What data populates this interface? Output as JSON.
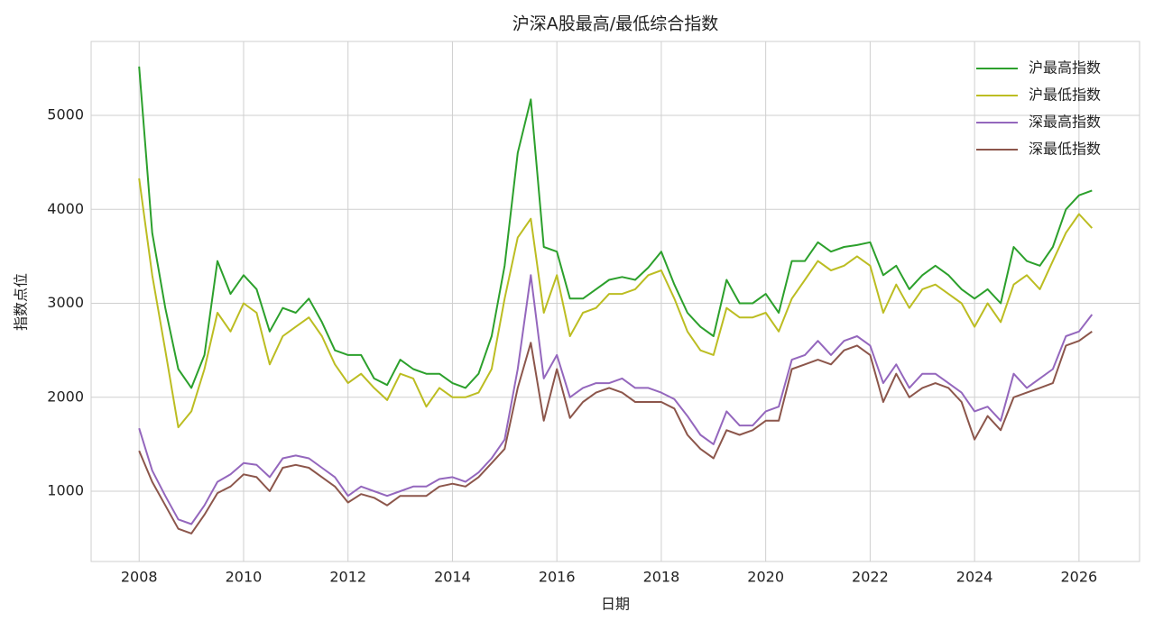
{
  "chart_data": {
    "type": "line",
    "title": "沪深A股最高/最低综合指数",
    "xlabel": "日期",
    "ylabel": "指数点位",
    "x": [
      2008,
      2008.25,
      2008.5,
      2008.75,
      2009,
      2009.25,
      2009.5,
      2009.75,
      2010,
      2010.25,
      2010.5,
      2010.75,
      2011,
      2011.25,
      2011.5,
      2011.75,
      2012,
      2012.25,
      2012.5,
      2012.75,
      2013,
      2013.25,
      2013.5,
      2013.75,
      2014,
      2014.25,
      2014.5,
      2014.75,
      2015,
      2015.25,
      2015.5,
      2015.75,
      2016,
      2016.25,
      2016.5,
      2016.75,
      2017,
      2017.25,
      2017.5,
      2017.75,
      2018,
      2018.25,
      2018.5,
      2018.75,
      2019,
      2019.25,
      2019.5,
      2019.75,
      2020,
      2020.25,
      2020.5,
      2020.75,
      2021,
      2021.25,
      2021.5,
      2021.75,
      2022,
      2022.25,
      2022.5,
      2022.75,
      2023,
      2023.25,
      2023.5,
      2023.75,
      2024,
      2024.25,
      2024.5,
      2024.75,
      2025,
      2025.25,
      2025.5,
      2025.75,
      2026,
      2026.25
    ],
    "series": [
      {
        "name": "沪最高指数",
        "color": "#2ca02c",
        "values": [
          5520,
          3750,
          2950,
          2300,
          2100,
          2450,
          3450,
          3100,
          3300,
          3150,
          2700,
          2950,
          2900,
          3050,
          2800,
          2500,
          2450,
          2450,
          2200,
          2130,
          2400,
          2300,
          2250,
          2250,
          2150,
          2100,
          2250,
          2650,
          3400,
          4600,
          5170,
          3600,
          3550,
          3050,
          3050,
          3150,
          3250,
          3280,
          3250,
          3380,
          3550,
          3200,
          2900,
          2750,
          2650,
          3250,
          3000,
          3000,
          3100,
          2900,
          3450,
          3450,
          3650,
          3550,
          3600,
          3620,
          3650,
          3300,
          3400,
          3150,
          3300,
          3400,
          3300,
          3150,
          3050,
          3150,
          3000,
          3600,
          3450,
          3400,
          3600,
          4000,
          4150,
          4200
        ]
      },
      {
        "name": "沪最低指数",
        "color": "#bcbd22",
        "values": [
          4330,
          3300,
          2500,
          1680,
          1850,
          2300,
          2900,
          2700,
          3000,
          2900,
          2350,
          2650,
          2750,
          2850,
          2650,
          2350,
          2150,
          2250,
          2100,
          1970,
          2250,
          2200,
          1900,
          2100,
          2000,
          2000,
          2050,
          2300,
          3050,
          3700,
          3900,
          2900,
          3300,
          2650,
          2900,
          2950,
          3100,
          3100,
          3150,
          3300,
          3350,
          3050,
          2700,
          2500,
          2450,
          2950,
          2850,
          2850,
          2900,
          2700,
          3050,
          3250,
          3450,
          3350,
          3400,
          3500,
          3400,
          2900,
          3200,
          2950,
          3150,
          3200,
          3100,
          3000,
          2750,
          3000,
          2800,
          3200,
          3300,
          3150,
          3450,
          3750,
          3950,
          3800
        ]
      },
      {
        "name": "深最高指数",
        "color": "#9467bd",
        "values": [
          1670,
          1220,
          950,
          700,
          650,
          850,
          1100,
          1180,
          1300,
          1280,
          1150,
          1350,
          1380,
          1350,
          1250,
          1150,
          950,
          1050,
          1000,
          950,
          1000,
          1050,
          1050,
          1130,
          1150,
          1100,
          1200,
          1350,
          1550,
          2300,
          3300,
          2200,
          2450,
          2000,
          2100,
          2150,
          2150,
          2200,
          2100,
          2100,
          2050,
          1980,
          1800,
          1600,
          1500,
          1850,
          1700,
          1700,
          1850,
          1900,
          2400,
          2450,
          2600,
          2450,
          2600,
          2650,
          2550,
          2150,
          2350,
          2100,
          2250,
          2250,
          2150,
          2050,
          1850,
          1900,
          1750,
          2250,
          2100,
          2200,
          2300,
          2650,
          2700,
          2880
        ]
      },
      {
        "name": "深最低指数",
        "color": "#8c564b",
        "values": [
          1430,
          1100,
          850,
          600,
          550,
          750,
          980,
          1050,
          1180,
          1150,
          1000,
          1250,
          1280,
          1250,
          1150,
          1050,
          880,
          970,
          930,
          850,
          950,
          950,
          950,
          1050,
          1080,
          1050,
          1150,
          1300,
          1450,
          2100,
          2580,
          1750,
          2300,
          1780,
          1950,
          2050,
          2100,
          2050,
          1950,
          1950,
          1950,
          1880,
          1600,
          1450,
          1350,
          1650,
          1600,
          1650,
          1750,
          1750,
          2300,
          2350,
          2400,
          2350,
          2500,
          2550,
          2450,
          1950,
          2250,
          2000,
          2100,
          2150,
          2100,
          1950,
          1550,
          1800,
          1650,
          2000,
          2050,
          2100,
          2150,
          2550,
          2600,
          2700
        ]
      }
    ],
    "xlim": [
      2007.08,
      2027.16
    ],
    "xticks": [
      2008,
      2010,
      2012,
      2014,
      2016,
      2018,
      2020,
      2022,
      2024,
      2026
    ],
    "ylim": [
      252,
      5787
    ],
    "yticks": [
      1000,
      2000,
      3000,
      4000,
      5000
    ],
    "grid": true,
    "legend": "upper right"
  }
}
